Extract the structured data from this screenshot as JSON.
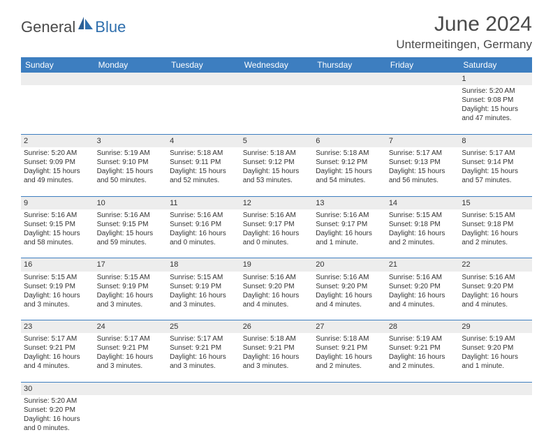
{
  "logo": {
    "text1": "General",
    "text2": "Blue"
  },
  "title": "June 2024",
  "location": "Untermeitingen, Germany",
  "colors": {
    "header_bg": "#3d7ec0",
    "header_text": "#ffffff",
    "daynum_bg": "#ededed",
    "row_divider": "#3d7ec0",
    "body_text": "#333333",
    "title_text": "#4a4a4a",
    "logo_dark": "#4a4a4a",
    "logo_blue": "#2f6fad"
  },
  "weekdays": [
    "Sunday",
    "Monday",
    "Tuesday",
    "Wednesday",
    "Thursday",
    "Friday",
    "Saturday"
  ],
  "weeks": [
    [
      null,
      null,
      null,
      null,
      null,
      null,
      {
        "n": "1",
        "sr": "5:20 AM",
        "ss": "9:08 PM",
        "dl": "15 hours and 47 minutes."
      }
    ],
    [
      {
        "n": "2",
        "sr": "5:20 AM",
        "ss": "9:09 PM",
        "dl": "15 hours and 49 minutes."
      },
      {
        "n": "3",
        "sr": "5:19 AM",
        "ss": "9:10 PM",
        "dl": "15 hours and 50 minutes."
      },
      {
        "n": "4",
        "sr": "5:18 AM",
        "ss": "9:11 PM",
        "dl": "15 hours and 52 minutes."
      },
      {
        "n": "5",
        "sr": "5:18 AM",
        "ss": "9:12 PM",
        "dl": "15 hours and 53 minutes."
      },
      {
        "n": "6",
        "sr": "5:18 AM",
        "ss": "9:12 PM",
        "dl": "15 hours and 54 minutes."
      },
      {
        "n": "7",
        "sr": "5:17 AM",
        "ss": "9:13 PM",
        "dl": "15 hours and 56 minutes."
      },
      {
        "n": "8",
        "sr": "5:17 AM",
        "ss": "9:14 PM",
        "dl": "15 hours and 57 minutes."
      }
    ],
    [
      {
        "n": "9",
        "sr": "5:16 AM",
        "ss": "9:15 PM",
        "dl": "15 hours and 58 minutes."
      },
      {
        "n": "10",
        "sr": "5:16 AM",
        "ss": "9:15 PM",
        "dl": "15 hours and 59 minutes."
      },
      {
        "n": "11",
        "sr": "5:16 AM",
        "ss": "9:16 PM",
        "dl": "16 hours and 0 minutes."
      },
      {
        "n": "12",
        "sr": "5:16 AM",
        "ss": "9:17 PM",
        "dl": "16 hours and 0 minutes."
      },
      {
        "n": "13",
        "sr": "5:16 AM",
        "ss": "9:17 PM",
        "dl": "16 hours and 1 minute."
      },
      {
        "n": "14",
        "sr": "5:15 AM",
        "ss": "9:18 PM",
        "dl": "16 hours and 2 minutes."
      },
      {
        "n": "15",
        "sr": "5:15 AM",
        "ss": "9:18 PM",
        "dl": "16 hours and 2 minutes."
      }
    ],
    [
      {
        "n": "16",
        "sr": "5:15 AM",
        "ss": "9:19 PM",
        "dl": "16 hours and 3 minutes."
      },
      {
        "n": "17",
        "sr": "5:15 AM",
        "ss": "9:19 PM",
        "dl": "16 hours and 3 minutes."
      },
      {
        "n": "18",
        "sr": "5:15 AM",
        "ss": "9:19 PM",
        "dl": "16 hours and 3 minutes."
      },
      {
        "n": "19",
        "sr": "5:16 AM",
        "ss": "9:20 PM",
        "dl": "16 hours and 4 minutes."
      },
      {
        "n": "20",
        "sr": "5:16 AM",
        "ss": "9:20 PM",
        "dl": "16 hours and 4 minutes."
      },
      {
        "n": "21",
        "sr": "5:16 AM",
        "ss": "9:20 PM",
        "dl": "16 hours and 4 minutes."
      },
      {
        "n": "22",
        "sr": "5:16 AM",
        "ss": "9:20 PM",
        "dl": "16 hours and 4 minutes."
      }
    ],
    [
      {
        "n": "23",
        "sr": "5:17 AM",
        "ss": "9:21 PM",
        "dl": "16 hours and 4 minutes."
      },
      {
        "n": "24",
        "sr": "5:17 AM",
        "ss": "9:21 PM",
        "dl": "16 hours and 3 minutes."
      },
      {
        "n": "25",
        "sr": "5:17 AM",
        "ss": "9:21 PM",
        "dl": "16 hours and 3 minutes."
      },
      {
        "n": "26",
        "sr": "5:18 AM",
        "ss": "9:21 PM",
        "dl": "16 hours and 3 minutes."
      },
      {
        "n": "27",
        "sr": "5:18 AM",
        "ss": "9:21 PM",
        "dl": "16 hours and 2 minutes."
      },
      {
        "n": "28",
        "sr": "5:19 AM",
        "ss": "9:21 PM",
        "dl": "16 hours and 2 minutes."
      },
      {
        "n": "29",
        "sr": "5:19 AM",
        "ss": "9:20 PM",
        "dl": "16 hours and 1 minute."
      }
    ],
    [
      {
        "n": "30",
        "sr": "5:20 AM",
        "ss": "9:20 PM",
        "dl": "16 hours and 0 minutes."
      },
      null,
      null,
      null,
      null,
      null,
      null
    ]
  ]
}
